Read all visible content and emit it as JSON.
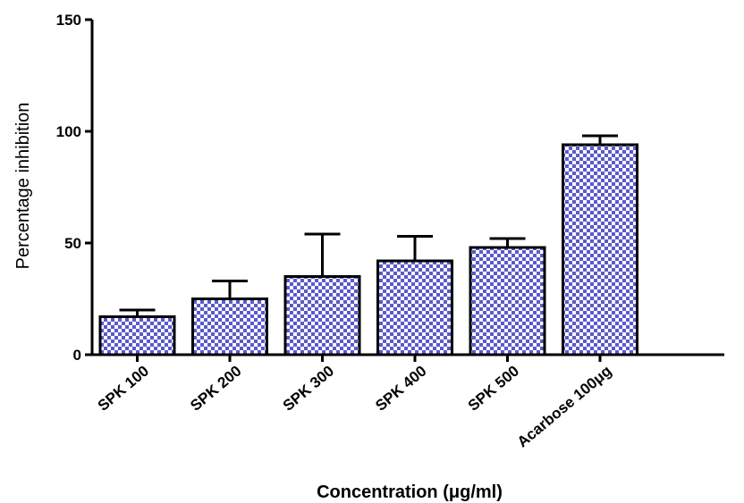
{
  "chart_data": {
    "type": "bar",
    "title": "",
    "xlabel": "Concentration (μg/ml)",
    "ylabel": "Percentage inhibition",
    "ylim": [
      0,
      150
    ],
    "yticks": [
      "0",
      "50",
      "100",
      "150"
    ],
    "categories": [
      "SPK 100",
      "SPK 200",
      "SPK 300",
      "SPK 400",
      "SPK 500",
      "Acarbose 100μg"
    ],
    "values": [
      17,
      25,
      35,
      42,
      48,
      94
    ],
    "errors": [
      3,
      8,
      19,
      11,
      4,
      4
    ],
    "grid": false,
    "legend": "none",
    "colors": {
      "bar_fill": "#5a5acc",
      "bar_check": "#ffffff",
      "axis": "#000000"
    }
  }
}
